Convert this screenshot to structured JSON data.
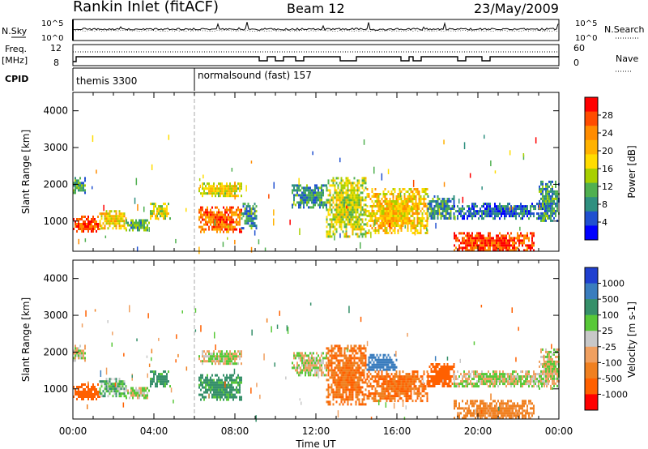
{
  "header": {
    "station": "Rankin Inlet (fitACF)",
    "beam": "Beam 12",
    "date": "23/May/2009"
  },
  "left_labels": {
    "nsky": "N.Sky",
    "freq_line1": "Freq.",
    "freq_line2": "[MHz]",
    "cpid": "CPID"
  },
  "right_labels": {
    "nsearch": "N.Search",
    "nave": "Nave"
  },
  "panels": {
    "noise": {
      "left_ticks": [
        "10^5",
        "10^0"
      ],
      "right_ticks": [
        "10^5",
        "10^0"
      ]
    },
    "freq": {
      "left_ticks": [
        "12",
        "8"
      ],
      "right_ticks": [
        "60",
        "0"
      ]
    },
    "cpid": {
      "segments": [
        {
          "label": "themis 3300",
          "start_hour": 0,
          "end_hour": 6
        },
        {
          "label": "normalsound (fast) 157",
          "start_hour": 6,
          "end_hour": 24
        }
      ]
    }
  },
  "colorbars": {
    "power": {
      "title": "Power [dB]",
      "tick_labels": [
        "28",
        "24",
        "20",
        "16",
        "12",
        "8",
        "4"
      ],
      "colors": [
        "#ff0000",
        "#ff4c00",
        "#ff8c00",
        "#ffb200",
        "#ffdc00",
        "#a8d000",
        "#50b050",
        "#2f9080",
        "#2050d0",
        "#0000ff"
      ]
    },
    "velocity": {
      "title": "Velocity [m s-1]",
      "tick_labels": [
        "1000",
        "500",
        "100",
        "25",
        "-25",
        "-100",
        "-500",
        "-1000"
      ],
      "colors": [
        "#2040d0",
        "#3a7dbe",
        "#36906a",
        "#58c838",
        "#c8c8c8",
        "#f0a060",
        "#f08020",
        "#ff6000",
        "#ff0000"
      ]
    }
  },
  "axes": {
    "xlabel": "Time UT",
    "ylabel": "Slant Range [km]",
    "xticks": [
      "00:00",
      "04:00",
      "08:00",
      "12:00",
      "16:00",
      "20:00",
      "00:00"
    ],
    "yticks": [
      "1000",
      "2000",
      "3000",
      "4000"
    ]
  },
  "chart_data": [
    {
      "type": "heatmap",
      "title": "",
      "xlabel": "",
      "ylabel": "Slant Range [km]",
      "xlim": [
        0,
        24
      ],
      "ylim": [
        180,
        4500
      ],
      "colorbar_label": "Power [dB]",
      "colorbar_range": [
        0,
        30
      ],
      "regions": [
        {
          "x0": 0.0,
          "x1": 1.3,
          "y0": 700,
          "y1": 1150,
          "level": 26
        },
        {
          "x0": 1.3,
          "x1": 2.6,
          "y0": 800,
          "y1": 1300,
          "level": 18
        },
        {
          "x0": 2.6,
          "x1": 3.8,
          "y0": 750,
          "y1": 1050,
          "level": 10
        },
        {
          "x0": 3.8,
          "x1": 4.8,
          "y0": 1100,
          "y1": 1500,
          "level": 14
        },
        {
          "x0": 0.0,
          "x1": 0.6,
          "y0": 1800,
          "y1": 2200,
          "level": 10
        },
        {
          "x0": 6.2,
          "x1": 8.3,
          "y0": 700,
          "y1": 1400,
          "level": 24
        },
        {
          "x0": 6.2,
          "x1": 8.3,
          "y0": 1700,
          "y1": 2050,
          "level": 16
        },
        {
          "x0": 8.3,
          "x1": 9.1,
          "y0": 800,
          "y1": 1500,
          "level": 8
        },
        {
          "x0": 10.8,
          "x1": 12.5,
          "y0": 1400,
          "y1": 2000,
          "level": 8
        },
        {
          "x0": 12.5,
          "x1": 14.5,
          "y0": 600,
          "y1": 2200,
          "level": 14
        },
        {
          "x0": 14.5,
          "x1": 17.5,
          "y0": 700,
          "y1": 1900,
          "level": 18
        },
        {
          "x0": 17.5,
          "x1": 18.8,
          "y0": 1100,
          "y1": 1700,
          "level": 8
        },
        {
          "x0": 18.8,
          "x1": 23.5,
          "y0": 1100,
          "y1": 1500,
          "level": 6
        },
        {
          "x0": 18.8,
          "x1": 22.8,
          "y0": 180,
          "y1": 700,
          "level": 26
        },
        {
          "x0": 23.0,
          "x1": 24.0,
          "y0": 1000,
          "y1": 2100,
          "level": 8
        }
      ]
    },
    {
      "type": "heatmap",
      "title": "",
      "xlabel": "Time UT",
      "ylabel": "Slant Range [km]",
      "xlim": [
        0,
        24
      ],
      "ylim": [
        180,
        4500
      ],
      "colorbar_label": "Velocity [m s-1]",
      "colorbar_range": [
        -1000,
        1000
      ],
      "regions": [
        {
          "x0": 0.0,
          "x1": 1.3,
          "y0": 700,
          "y1": 1150,
          "level": -500
        },
        {
          "x0": 1.3,
          "x1": 2.6,
          "y0": 800,
          "y1": 1300,
          "level": 50
        },
        {
          "x0": 2.6,
          "x1": 3.8,
          "y0": 750,
          "y1": 1050,
          "level": 0
        },
        {
          "x0": 3.8,
          "x1": 4.8,
          "y0": 1100,
          "y1": 1500,
          "level": 100
        },
        {
          "x0": 0.0,
          "x1": 0.6,
          "y0": 1800,
          "y1": 2200,
          "level": 0
        },
        {
          "x0": 6.2,
          "x1": 8.3,
          "y0": 700,
          "y1": 1400,
          "level": 100
        },
        {
          "x0": 6.2,
          "x1": 8.3,
          "y0": 1700,
          "y1": 2050,
          "level": 0
        },
        {
          "x0": 10.8,
          "x1": 12.5,
          "y0": 1400,
          "y1": 2000,
          "level": 0
        },
        {
          "x0": 12.5,
          "x1": 14.5,
          "y0": 600,
          "y1": 2200,
          "level": -300
        },
        {
          "x0": 14.5,
          "x1": 16.0,
          "y0": 1500,
          "y1": 1950,
          "level": 500
        },
        {
          "x0": 14.5,
          "x1": 17.5,
          "y0": 700,
          "y1": 1500,
          "level": -300
        },
        {
          "x0": 17.5,
          "x1": 18.8,
          "y0": 1100,
          "y1": 1700,
          "level": -500
        },
        {
          "x0": 18.8,
          "x1": 23.5,
          "y0": 1100,
          "y1": 1500,
          "level": 0
        },
        {
          "x0": 18.8,
          "x1": 22.8,
          "y0": 180,
          "y1": 700,
          "level": -100
        },
        {
          "x0": 23.0,
          "x1": 24.0,
          "y0": 1000,
          "y1": 2100,
          "level": 0
        }
      ]
    }
  ]
}
